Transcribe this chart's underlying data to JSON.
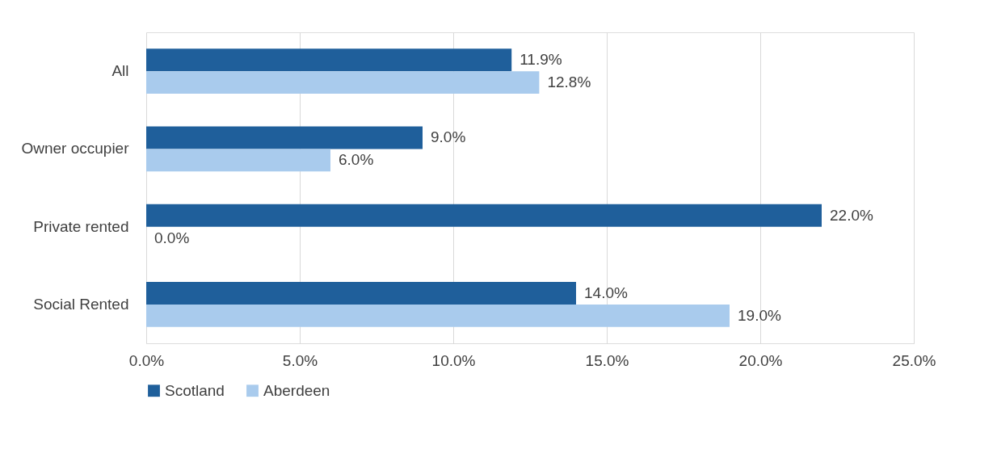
{
  "chart_data": {
    "type": "bar",
    "orientation": "horizontal",
    "categories": [
      "All",
      "Owner occupier",
      "Private rented",
      "Social Rented"
    ],
    "series": [
      {
        "name": "Scotland",
        "color": "#1f5f9b",
        "values": [
          11.9,
          9.0,
          22.0,
          14.0
        ],
        "value_labels": [
          "11.9%",
          "9.0%",
          "22.0%",
          "14.0%"
        ]
      },
      {
        "name": "Aberdeen",
        "color": "#a9cbed",
        "values": [
          12.8,
          6.0,
          0.0,
          19.0
        ],
        "value_labels": [
          "12.8%",
          "6.0%",
          "0.0%",
          "19.0%"
        ]
      }
    ],
    "xlim": [
      0,
      25
    ],
    "xticks": [
      {
        "value": 0,
        "label": "0.0%"
      },
      {
        "value": 5,
        "label": "5.0%"
      },
      {
        "value": 10,
        "label": "10.0%"
      },
      {
        "value": 15,
        "label": "15.0%"
      },
      {
        "value": 20,
        "label": "20.0%"
      },
      {
        "value": 25,
        "label": "25.0%"
      }
    ],
    "grid": "x",
    "legend": "bottom"
  }
}
